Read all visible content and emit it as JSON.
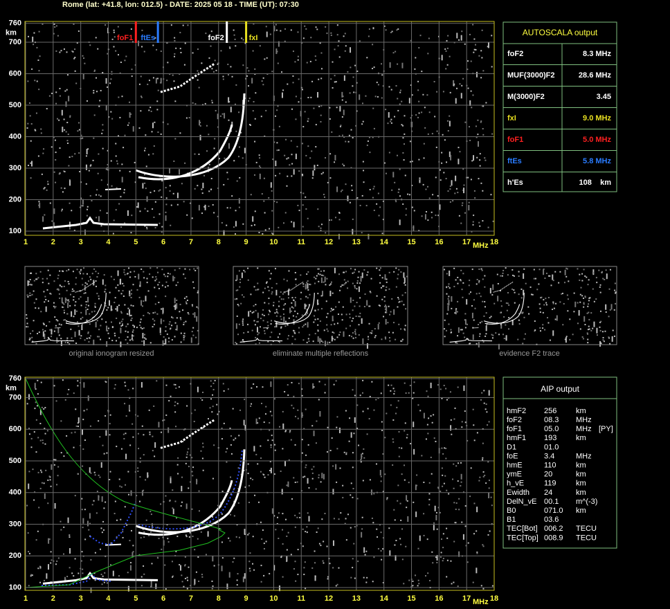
{
  "header": {
    "title": "Rome (lat: +41.8, lon: 012.5) - DATE: 2025 05 18 - TIME (UT): 07:30"
  },
  "chart_data": [
    {
      "type": "ionogram",
      "x_unit": "MHz",
      "y_unit": "km",
      "grid": true,
      "xlim": [
        1,
        18
      ],
      "xticks": [
        1,
        2,
        3,
        4,
        5,
        6,
        7,
        8,
        9,
        10,
        11,
        12,
        13,
        14,
        15,
        16,
        17,
        18
      ],
      "ylim": [
        100,
        760
      ],
      "yticks": [
        100,
        200,
        300,
        400,
        500,
        600,
        700,
        760
      ],
      "markers": [
        {
          "name": "foF1",
          "value": 5.0,
          "color": "#ff2020"
        },
        {
          "name": "ftEs",
          "value": 5.8,
          "color": "#2a7cff"
        },
        {
          "name": "foF2",
          "value": 8.3,
          "color": "#ffffff"
        },
        {
          "name": "fxI",
          "value": 9.0,
          "color": "#e8e020"
        }
      ]
    },
    {
      "type": "ionogram",
      "x_unit": "MHz",
      "y_unit": "km",
      "grid": true,
      "xlim": [
        1,
        18
      ],
      "xticks": [
        1,
        2,
        3,
        4,
        5,
        6,
        7,
        8,
        9,
        10,
        11,
        12,
        13,
        14,
        15,
        16,
        17,
        18
      ],
      "ylim": [
        100,
        760
      ],
      "yticks": [
        100,
        200,
        300,
        400,
        500,
        600,
        700,
        760
      ]
    }
  ],
  "autoscala": {
    "title": "AUTOSCALA output",
    "rows": [
      {
        "label": "foF2",
        "value": "8.3 MHz",
        "color": "#ffffff"
      },
      {
        "label": "MUF(3000)F2",
        "value": "28.6 MHz",
        "color": "#ffffff"
      },
      {
        "label": "M(3000)F2",
        "value": "3.45",
        "color": "#ffffff"
      },
      {
        "label": "fxI",
        "value": "9.0 MHz",
        "color": "#e8e020"
      },
      {
        "label": "foF1",
        "value": "5.0 MHz",
        "color": "#ff2020"
      },
      {
        "label": "ftEs",
        "value": "5.8 MHz",
        "color": "#2a7cff"
      },
      {
        "label": "h'Es",
        "value": "108    km",
        "color": "#ffffff"
      }
    ]
  },
  "thumbnails": [
    {
      "caption": "original ionogram resized"
    },
    {
      "caption": "eliminate multiple reflections"
    },
    {
      "caption": "evidence F2 trace"
    }
  ],
  "aip": {
    "title": "AIP output",
    "rows": [
      [
        "hmF2",
        "256",
        "km"
      ],
      [
        "foF2",
        "08.3",
        "MHz"
      ],
      [
        "foF1",
        "05.0",
        "MHz",
        "[PY]"
      ],
      [
        "hmF1",
        "193",
        "km"
      ],
      [
        "D1",
        "01.0"
      ],
      [
        "foE",
        "3.4",
        "MHz"
      ],
      [
        "hmE",
        "110",
        "km"
      ],
      [
        "ymE",
        "20",
        "km"
      ],
      [
        "h_vE",
        "119",
        "km"
      ],
      [
        "Ewidth",
        "24",
        "km"
      ],
      [
        "DelN_vE",
        "00.1",
        "m^(-3)"
      ],
      [
        "B0",
        "071.0",
        "km"
      ],
      [
        "B1",
        "03.6"
      ],
      [
        "TEC[Bot]",
        "006.2",
        "TECU"
      ],
      [
        "TEC[Top]",
        "008.9",
        "TECU"
      ]
    ]
  }
}
